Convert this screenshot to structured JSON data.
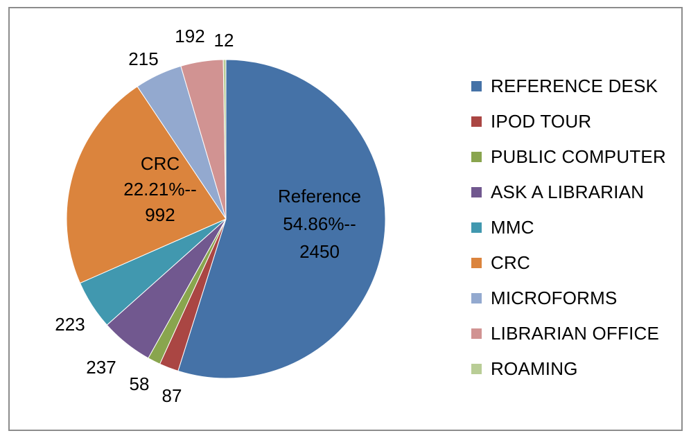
{
  "chart_data": {
    "type": "pie",
    "categories": [
      "REFERENCE DESK",
      "IPOD TOUR",
      "PUBLIC COMPUTER",
      "ASK A LIBRARIAN",
      "MMC",
      "CRC",
      "MICROFORMS",
      "LIBRARIAN OFFICE",
      "ROAMING"
    ],
    "values": [
      2450,
      87,
      58,
      237,
      223,
      992,
      215,
      192,
      12
    ],
    "colors": [
      "#4572a7",
      "#aa4643",
      "#89a54e",
      "#71588f",
      "#4198af",
      "#db843d",
      "#93a9cf",
      "#d19392",
      "#b9cd96"
    ],
    "data_labels": [
      "Reference\n54.86%--\n2450",
      "87",
      "58",
      "237",
      "223",
      "CRC\n22.21%--\n992",
      "215",
      "192",
      "12"
    ],
    "legend_position": "right"
  }
}
